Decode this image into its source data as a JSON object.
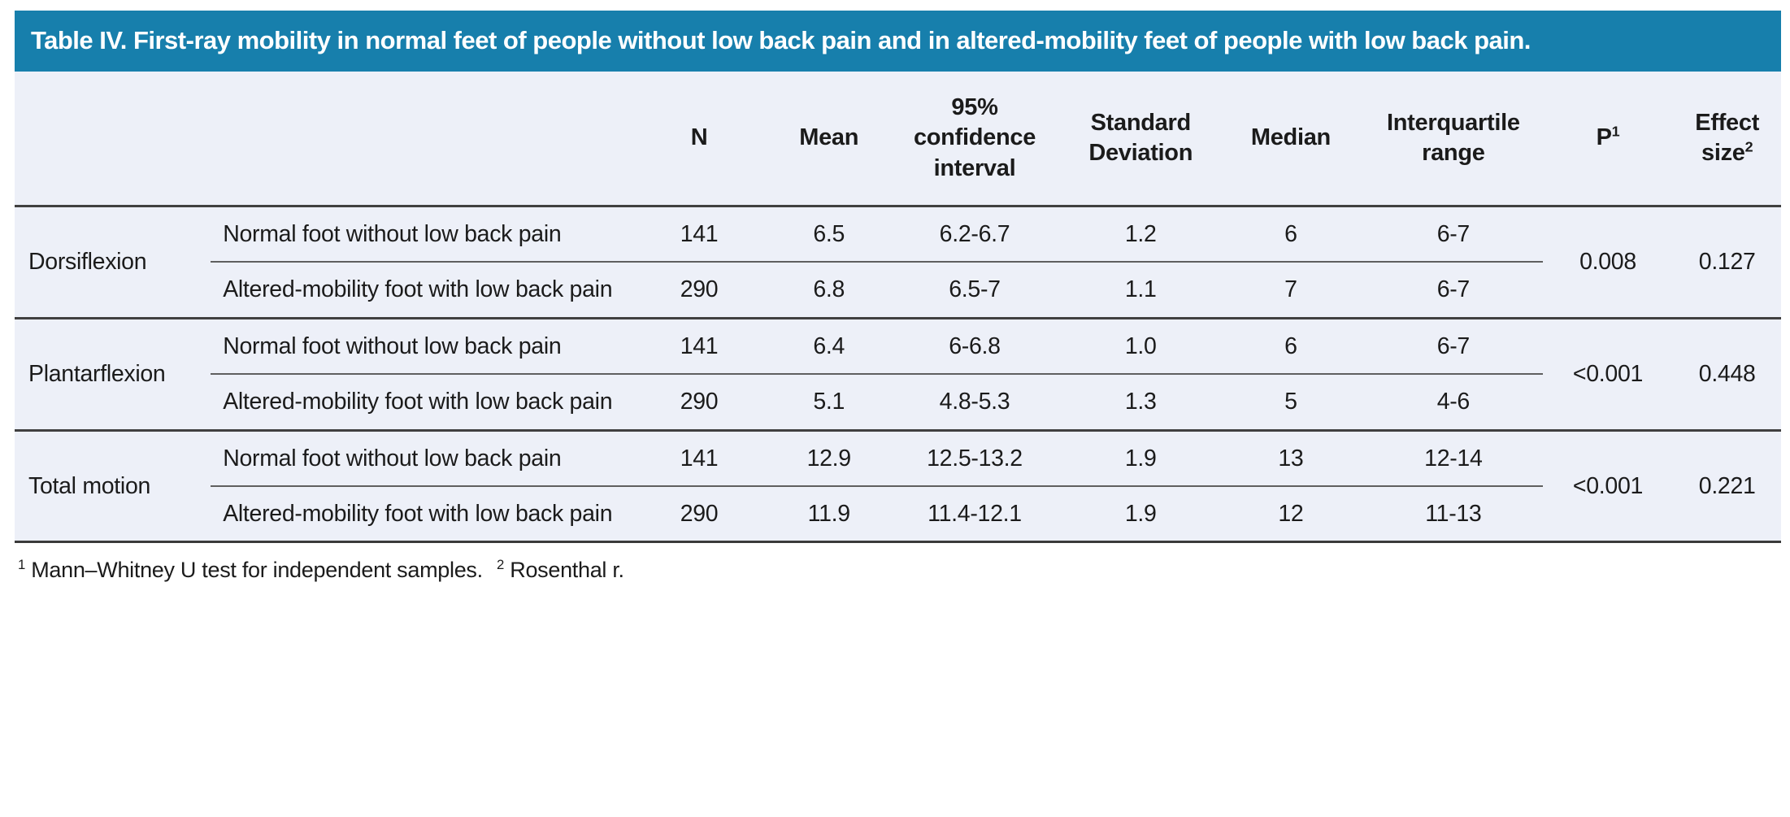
{
  "title": "Table IV. First-ray mobility in normal feet of people without low back pain and in altered-mobility feet of people with low back pain.",
  "colors": {
    "title_bar_bg": "#177fac",
    "title_text": "#ffffff",
    "table_bg": "#edf0f8",
    "heavy_rule": "#404040",
    "light_rule": "#5f5f5f",
    "body_text": "#1b1b1b"
  },
  "table": {
    "headers": [
      {
        "label": "N",
        "sup": ""
      },
      {
        "label": "Mean",
        "sup": ""
      },
      {
        "label": "95%\nconfidence\ninterval",
        "sup": ""
      },
      {
        "label": "Standard\nDeviation",
        "sup": ""
      },
      {
        "label": "Median",
        "sup": ""
      },
      {
        "label": "Interquartile\nrange",
        "sup": ""
      },
      {
        "label": "P",
        "sup": "1"
      },
      {
        "label": "Effect\nsize",
        "sup": "2"
      }
    ],
    "groups": [
      {
        "name": "Dorsiflexion",
        "p": "0.008",
        "effect_size": "0.127",
        "rows": [
          {
            "condition": "Normal foot without low back pain",
            "n": "141",
            "mean": "6.5",
            "ci": "6.2-6.7",
            "sd": "1.2",
            "median": "6",
            "iqr": "6-7"
          },
          {
            "condition": "Altered-mobility foot with low back pain",
            "n": "290",
            "mean": "6.8",
            "ci": "6.5-7",
            "sd": "1.1",
            "median": "7",
            "iqr": "6-7"
          }
        ]
      },
      {
        "name": "Plantarflexion",
        "p": "<0.001",
        "effect_size": "0.448",
        "rows": [
          {
            "condition": "Normal foot without low back pain",
            "n": "141",
            "mean": "6.4",
            "ci": "6-6.8",
            "sd": "1.0",
            "median": "6",
            "iqr": "6-7"
          },
          {
            "condition": "Altered-mobility foot with low back pain",
            "n": "290",
            "mean": "5.1",
            "ci": "4.8-5.3",
            "sd": "1.3",
            "median": "5",
            "iqr": "4-6"
          }
        ]
      },
      {
        "name": "Total motion",
        "p": "<0.001",
        "effect_size": "0.221",
        "rows": [
          {
            "condition": "Normal foot without low back pain",
            "n": "141",
            "mean": "12.9",
            "ci": "12.5-13.2",
            "sd": "1.9",
            "median": "13",
            "iqr": "12-14"
          },
          {
            "condition": "Altered-mobility foot with low back pain",
            "n": "290",
            "mean": "11.9",
            "ci": "11.4-12.1",
            "sd": "1.9",
            "median": "12",
            "iqr": "11-13"
          }
        ]
      }
    ]
  },
  "footnote": {
    "items": [
      {
        "sup": "1",
        "text": "Mann–Whitney U test for independent samples."
      },
      {
        "sup": "2",
        "text": "Rosenthal r."
      }
    ]
  }
}
